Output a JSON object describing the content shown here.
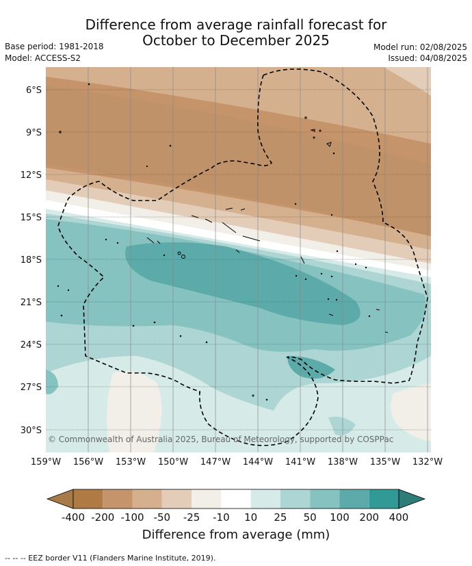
{
  "title": {
    "line1": "Difference from average rainfall forecast for",
    "line2": "October to December 2025"
  },
  "meta": {
    "base_period": "Base period: 1981-2018",
    "model": "Model: ACCESS-S2",
    "model_run": "Model run: 02/08/2025",
    "issued": "Issued: 04/08/2025"
  },
  "map": {
    "lat_labels": [
      "6°S",
      "9°S",
      "12°S",
      "15°S",
      "18°S",
      "21°S",
      "24°S",
      "27°S",
      "30°S"
    ],
    "lon_labels": [
      "159°W",
      "156°W",
      "153°W",
      "150°W",
      "147°W",
      "144°W",
      "141°W",
      "138°W",
      "135°W",
      "132°W"
    ],
    "copyright": "© Commonwealth of Australia 2025, Bureau of Meteorology, supported by COSPPac"
  },
  "colorbar": {
    "labels": [
      "-400",
      "-200",
      "-100",
      "-50",
      "-25",
      "-10",
      "10",
      "25",
      "50",
      "100",
      "200",
      "400"
    ],
    "colors": [
      "#a87a4a",
      "#b07a45",
      "#c5946a",
      "#d4b08f",
      "#e3cdb9",
      "#f2eee8",
      "#ffffff",
      "#d6eae8",
      "#acd5d3",
      "#86c2c0",
      "#5caaa9",
      "#329a96",
      "#2e7d78"
    ],
    "title": "Difference from average (mm)"
  },
  "legend_note": "--  --  -- EEZ border V11 (Flanders Marine Institute, 2019)."
}
